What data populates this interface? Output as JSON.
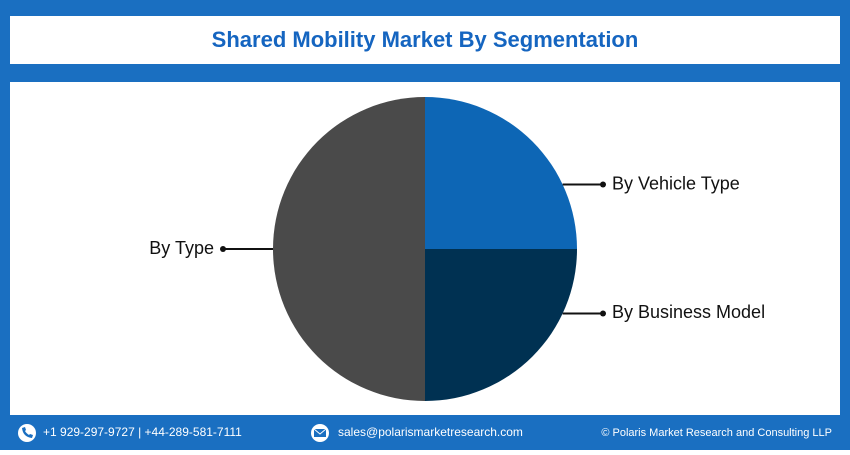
{
  "chart_data": {
    "type": "pie",
    "title": "Shared Mobility Market By Segmentation",
    "categories": [
      "By Vehicle Type",
      "By Business Model",
      "By Type"
    ],
    "values": [
      25,
      25,
      50
    ],
    "colors": [
      "#0d66b5",
      "#003152",
      "#4a4a4a"
    ]
  },
  "footer": {
    "phone": "+1 929-297-9727 | +44-289-581-7111",
    "email": "sales@polarismarketresearch.com",
    "copyright": "© Polaris Market Research and Consulting LLP"
  }
}
